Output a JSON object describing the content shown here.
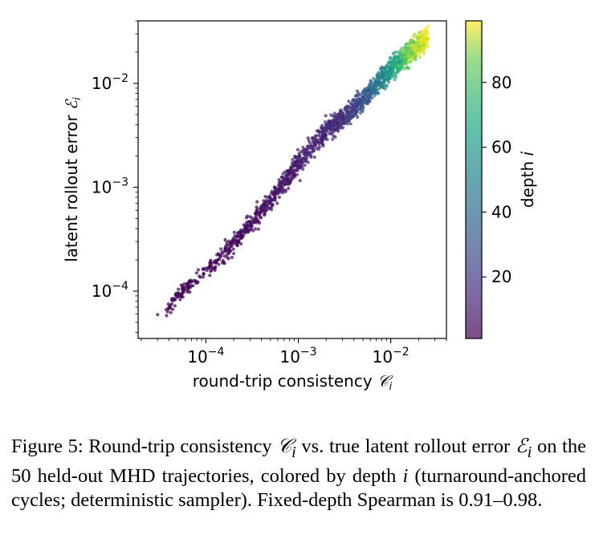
{
  "chart_data": {
    "type": "scatter",
    "xlabel": "round-trip consistency 𝒞ᵢ",
    "ylabel": "latent rollout error ℰᵢ",
    "xscale": "log",
    "yscale": "log",
    "xlim": [
      1.85e-05,
      0.04
    ],
    "ylim": [
      3.5e-05,
      0.04
    ],
    "x_ticks": [
      {
        "value": 0.0001,
        "base": "10",
        "exp": "−4"
      },
      {
        "value": 0.001,
        "base": "10",
        "exp": "−3"
      },
      {
        "value": 0.01,
        "base": "10",
        "exp": "−2"
      }
    ],
    "y_ticks": [
      {
        "value": 0.0001,
        "base": "10",
        "exp": "−4"
      },
      {
        "value": 0.001,
        "base": "10",
        "exp": "−3"
      },
      {
        "value": 0.01,
        "base": "10",
        "exp": "−2"
      }
    ],
    "grid": false,
    "colorbar": {
      "label": "depth i",
      "min": 1,
      "max": 99,
      "ticks": [
        20,
        40,
        60,
        80
      ],
      "colormap": "viridis",
      "alpha": 0.7
    },
    "series": [
      {
        "color_by": "depth",
        "description_points": [
          {
            "x": 3.1e-05,
            "y": 5.2e-05,
            "depth": 1
          },
          {
            "x": 4e-05,
            "y": 7e-05,
            "depth": 1
          },
          {
            "x": 5e-05,
            "y": 9.3e-05,
            "depth": 2
          },
          {
            "x": 7e-05,
            "y": 0.00012,
            "depth": 2
          },
          {
            "x": 0.00013,
            "y": 0.00019,
            "depth": 3
          },
          {
            "x": 0.0002,
            "y": 0.00028,
            "depth": 4
          },
          {
            "x": 0.0003,
            "y": 0.00045,
            "depth": 5
          },
          {
            "x": 0.0005,
            "y": 0.00075,
            "depth": 6
          },
          {
            "x": 0.0008,
            "y": 0.0013,
            "depth": 8
          },
          {
            "x": 0.0012,
            "y": 0.0021,
            "depth": 10
          },
          {
            "x": 0.002,
            "y": 0.0035,
            "depth": 12
          },
          {
            "x": 0.003,
            "y": 0.0045,
            "depth": 15
          },
          {
            "x": 0.005,
            "y": 0.007,
            "depth": 25
          },
          {
            "x": 0.008,
            "y": 0.011,
            "depth": 45
          },
          {
            "x": 0.012,
            "y": 0.016,
            "depth": 65
          },
          {
            "x": 0.018,
            "y": 0.022,
            "depth": 85
          },
          {
            "x": 0.025,
            "y": 0.027,
            "depth": 99
          }
        ]
      }
    ]
  },
  "caption": {
    "prefix": "Figure 5: Round-trip consistency ",
    "c_symbol": "𝒞",
    "c_sub": "i",
    "mid1": " vs. true latent rollout error ",
    "e_symbol": "ℰ",
    "e_sub": "i",
    "mid2": " on the 50 held-out MHD trajectories, colored by depth ",
    "i_symbol": "i",
    "mid3": " (turnaround-anchored cycles; deterministic sampler). Fixed-depth Spearman is ",
    "range": "0.91–0.98",
    "end": "."
  }
}
